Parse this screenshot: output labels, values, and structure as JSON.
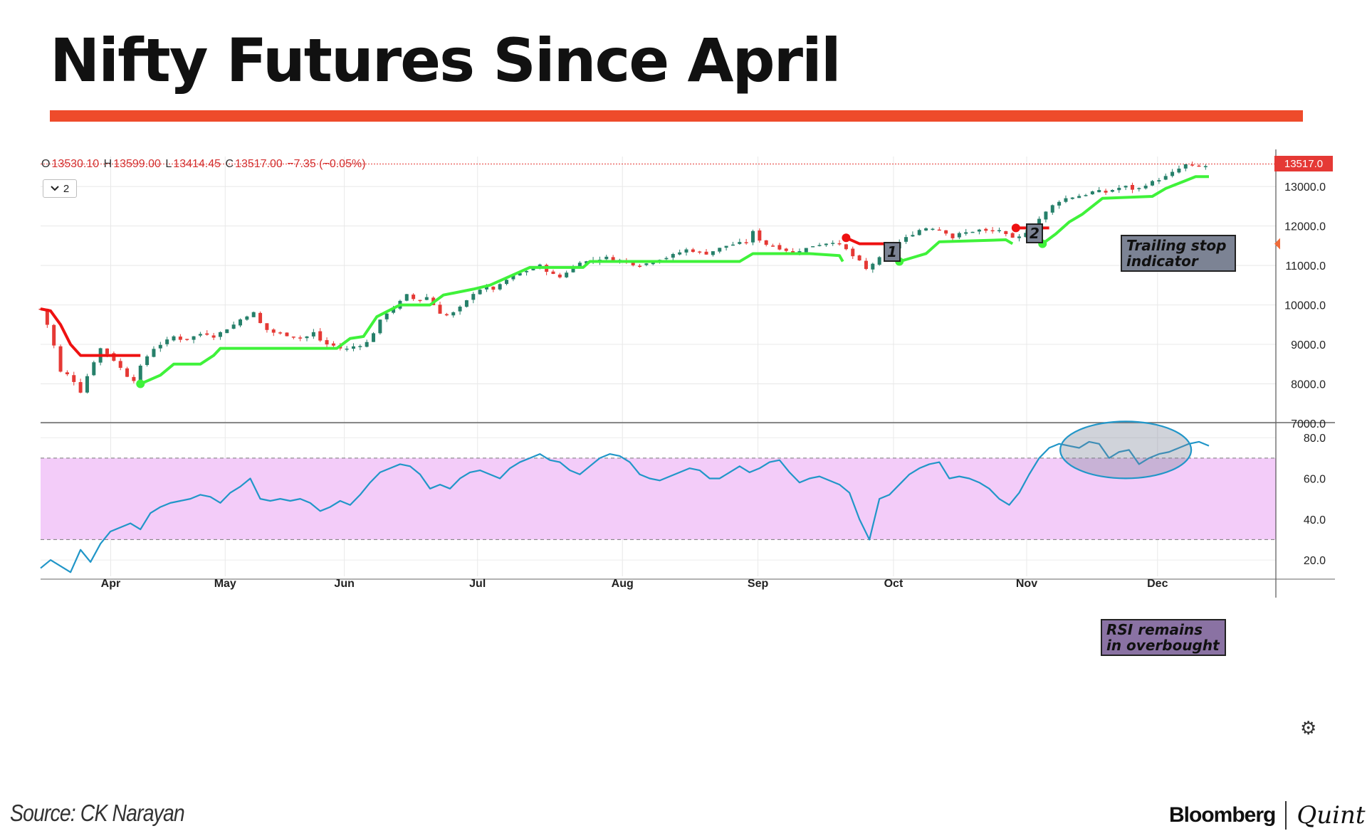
{
  "header": {
    "title": "Nifty Futures Since April"
  },
  "colors": {
    "accent": "#ee4b2b",
    "up": "#26806a",
    "down": "#e53935",
    "stop_green": "#3ff23a",
    "stop_red": "#ee1111",
    "rsi_line": "#2196c8",
    "rsi_band": "#f3ccf9",
    "note_gray": "#7c8394",
    "note_purple": "#8a72a3"
  },
  "ohlc": {
    "o_label": "O",
    "o": "13530.10",
    "h_label": "H",
    "h": "13599.00",
    "l_label": "L",
    "l": "13414.45",
    "c_label": "C",
    "c": "13517.00",
    "chg": "−7.35 (−0.05%)"
  },
  "controls": {
    "collapse_count": "2",
    "collapse_icon": "chevron-down-icon",
    "settings_icon": "gear-icon"
  },
  "price_badge": "13517.0",
  "annotations": {
    "marker1": "1",
    "marker2": "2",
    "trailing_stop": [
      "Trailing stop",
      "indicator"
    ],
    "rsi_note": [
      "RSI remains",
      "in overbought"
    ]
  },
  "footer": {
    "source": "Source: CK Narayan",
    "brand_left": "Bloomberg",
    "brand_right": "Quint"
  },
  "chart_data": [
    {
      "type": "candlestick",
      "x_axis": {
        "ticks": [
          "Apr",
          "May",
          "Jun",
          "Jul",
          "Aug",
          "Sep",
          "Oct",
          "Nov",
          "Dec"
        ]
      },
      "y_axis": {
        "ticks": [
          "13000.0",
          "12000.0",
          "11000.0",
          "10000.0",
          "9000.0",
          "8000.0",
          "7000.0"
        ],
        "range": [
          7000,
          13850
        ]
      },
      "last_price": 13517.0,
      "close_path": [
        [
          0,
          9900
        ],
        [
          3,
          9300
        ],
        [
          6,
          8300
        ],
        [
          9,
          8200
        ],
        [
          12,
          7800
        ],
        [
          15,
          8400
        ],
        [
          18,
          8900
        ],
        [
          21,
          8700
        ],
        [
          24,
          8400
        ],
        [
          26,
          8200
        ],
        [
          28,
          8100
        ],
        [
          31,
          8600
        ],
        [
          34,
          8900
        ],
        [
          37,
          9050
        ],
        [
          40,
          9200
        ],
        [
          43,
          9100
        ],
        [
          46,
          9200
        ],
        [
          49,
          9300
        ],
        [
          52,
          9200
        ],
        [
          55,
          9350
        ],
        [
          58,
          9500
        ],
        [
          61,
          9700
        ],
        [
          64,
          9800
        ],
        [
          67,
          9400
        ],
        [
          70,
          9300
        ],
        [
          73,
          9250
        ],
        [
          76,
          9200
        ],
        [
          79,
          9150
        ],
        [
          82,
          9300
        ],
        [
          84,
          9100
        ],
        [
          86,
          9000
        ],
        [
          89,
          8950
        ],
        [
          91,
          8850
        ],
        [
          94,
          8950
        ],
        [
          97,
          9000
        ],
        [
          99,
          9100
        ],
        [
          101,
          9500
        ],
        [
          104,
          9800
        ],
        [
          107,
          10000
        ],
        [
          110,
          10250
        ],
        [
          113,
          10100
        ],
        [
          116,
          10200
        ],
        [
          119,
          9900
        ],
        [
          121,
          9700
        ],
        [
          124,
          9800
        ],
        [
          127,
          10000
        ],
        [
          130,
          10300
        ],
        [
          133,
          10450
        ],
        [
          136,
          10400
        ],
        [
          138,
          10500
        ],
        [
          141,
          10700
        ],
        [
          144,
          10800
        ],
        [
          147,
          10900
        ],
        [
          150,
          11000
        ],
        [
          153,
          10800
        ],
        [
          156,
          10700
        ],
        [
          159,
          10900
        ],
        [
          162,
          11100
        ],
        [
          164,
          11100
        ],
        [
          167,
          11150
        ],
        [
          170,
          11200
        ],
        [
          173,
          11150
        ],
        [
          176,
          11100
        ],
        [
          179,
          11000
        ],
        [
          182,
          11050
        ],
        [
          185,
          11150
        ],
        [
          188,
          11200
        ],
        [
          191,
          11300
        ],
        [
          194,
          11400
        ],
        [
          197,
          11350
        ],
        [
          200,
          11300
        ],
        [
          203,
          11400
        ],
        [
          206,
          11500
        ],
        [
          209,
          11550
        ],
        [
          212,
          11600
        ],
        [
          214,
          11850
        ],
        [
          217,
          11550
        ],
        [
          220,
          11500
        ],
        [
          223,
          11400
        ],
        [
          226,
          11350
        ],
        [
          229,
          11400
        ],
        [
          232,
          11500
        ],
        [
          235,
          11550
        ],
        [
          238,
          11600
        ],
        [
          241,
          11500
        ],
        [
          243,
          11300
        ],
        [
          246,
          11100
        ],
        [
          248,
          10900
        ],
        [
          250,
          11050
        ],
        [
          253,
          11250
        ],
        [
          256,
          11450
        ],
        [
          259,
          11650
        ],
        [
          262,
          11800
        ],
        [
          265,
          11950
        ],
        [
          268,
          11950
        ],
        [
          271,
          11900
        ],
        [
          274,
          11700
        ],
        [
          276,
          11800
        ],
        [
          279,
          11850
        ],
        [
          282,
          11900
        ],
        [
          285,
          11850
        ],
        [
          288,
          11900
        ],
        [
          291,
          11700
        ],
        [
          293,
          11650
        ],
        [
          296,
          11850
        ],
        [
          299,
          12100
        ],
        [
          302,
          12350
        ],
        [
          305,
          12600
        ],
        [
          308,
          12700
        ],
        [
          311,
          12750
        ],
        [
          314,
          12800
        ],
        [
          317,
          12900
        ],
        [
          320,
          12850
        ],
        [
          323,
          12950
        ],
        [
          326,
          13000
        ],
        [
          329,
          12900
        ],
        [
          332,
          13050
        ],
        [
          335,
          13150
        ],
        [
          338,
          13250
        ],
        [
          341,
          13400
        ],
        [
          344,
          13550
        ],
        [
          347,
          13500
        ],
        [
          350,
          13517
        ]
      ],
      "candle_count": 176,
      "trailing_stop": {
        "segments": [
          {
            "color": "red",
            "points": [
              [
                0,
                9900
              ],
              [
                3,
                9850
              ],
              [
                6,
                9500
              ],
              [
                9,
                9000
              ],
              [
                12,
                8720
              ],
              [
                30,
                8720
              ]
            ]
          },
          {
            "color": "green",
            "points": [
              [
                30,
                8000
              ],
              [
                36,
                8220
              ],
              [
                40,
                8500
              ],
              [
                48,
                8500
              ],
              [
                52,
                8720
              ],
              [
                54,
                8900
              ],
              [
                89,
                8900
              ],
              [
                93,
                9150
              ],
              [
                97,
                9200
              ],
              [
                101,
                9700
              ],
              [
                108,
                10000
              ],
              [
                117,
                10000
              ],
              [
                121,
                10250
              ],
              [
                130,
                10400
              ],
              [
                135,
                10500
              ],
              [
                147,
                10950
              ],
              [
                163,
                10950
              ],
              [
                165,
                11100
              ],
              [
                210,
                11100
              ],
              [
                214,
                11300
              ],
              [
                231,
                11300
              ],
              [
                240,
                11250
              ],
              [
                241,
                11100
              ]
            ]
          },
          {
            "color": "red",
            "points": [
              [
                242,
                11700
              ],
              [
                246,
                11550
              ],
              [
                256,
                11550
              ]
            ]
          },
          {
            "color": "green",
            "points": [
              [
                258,
                11100
              ],
              [
                262,
                11200
              ],
              [
                266,
                11300
              ],
              [
                270,
                11600
              ],
              [
                290,
                11650
              ],
              [
                292,
                11550
              ]
            ]
          },
          {
            "color": "red",
            "points": [
              [
                293,
                11950
              ],
              [
                303,
                11950
              ]
            ]
          },
          {
            "color": "green",
            "points": [
              [
                301,
                11550
              ],
              [
                305,
                11800
              ],
              [
                309,
                12100
              ],
              [
                313,
                12300
              ],
              [
                319,
                12700
              ],
              [
                334,
                12750
              ],
              [
                338,
                12950
              ],
              [
                344,
                13150
              ],
              [
                347,
                13250
              ],
              [
                351,
                13250
              ]
            ]
          }
        ]
      }
    },
    {
      "type": "line",
      "series": [
        {
          "name": "RSI"
        }
      ],
      "y_axis": {
        "ticks": [
          "80.0",
          "60.0",
          "40.0",
          "20.0"
        ],
        "range": [
          12,
          86
        ]
      },
      "band": [
        30,
        70
      ],
      "x": [
        0,
        3,
        6,
        9,
        12,
        15,
        18,
        21,
        24,
        27,
        30,
        33,
        36,
        39,
        42,
        45,
        48,
        51,
        54,
        57,
        60,
        63,
        66,
        69,
        72,
        75,
        78,
        81,
        84,
        87,
        90,
        93,
        96,
        99,
        102,
        105,
        108,
        111,
        114,
        117,
        120,
        123,
        126,
        129,
        132,
        135,
        138,
        141,
        144,
        147,
        150,
        153,
        156,
        159,
        162,
        165,
        168,
        171,
        174,
        177,
        180,
        183,
        186,
        189,
        192,
        195,
        198,
        201,
        204,
        207,
        210,
        213,
        216,
        219,
        222,
        225,
        228,
        231,
        234,
        237,
        240,
        243,
        246,
        249,
        252,
        255,
        258,
        261,
        264,
        267,
        270,
        273,
        276,
        279,
        282,
        285,
        288,
        291,
        294,
        297,
        300,
        303,
        306,
        309,
        312,
        315,
        318,
        321,
        324,
        327,
        330,
        333,
        336,
        339,
        342,
        345,
        348,
        351
      ],
      "values": [
        16,
        20,
        17,
        14,
        25,
        19,
        28,
        34,
        36,
        38,
        35,
        43,
        46,
        48,
        49,
        50,
        52,
        51,
        48,
        53,
        56,
        60,
        50,
        49,
        50,
        49,
        50,
        48,
        44,
        46,
        49,
        47,
        52,
        58,
        63,
        65,
        67,
        66,
        62,
        55,
        57,
        55,
        60,
        63,
        64,
        62,
        60,
        65,
        68,
        70,
        72,
        69,
        68,
        64,
        62,
        66,
        70,
        72,
        71,
        68,
        62,
        60,
        59,
        61,
        63,
        65,
        64,
        60,
        60,
        63,
        66,
        63,
        65,
        68,
        69,
        63,
        58,
        60,
        61,
        59,
        57,
        53,
        40,
        30,
        50,
        52,
        57,
        62,
        65,
        67,
        68,
        60,
        61,
        60,
        58,
        55,
        50,
        47,
        53,
        62,
        70,
        75,
        77,
        76,
        75,
        78,
        77,
        70,
        73,
        74,
        67,
        70,
        72,
        73,
        75,
        77,
        78,
        76
      ]
    }
  ]
}
